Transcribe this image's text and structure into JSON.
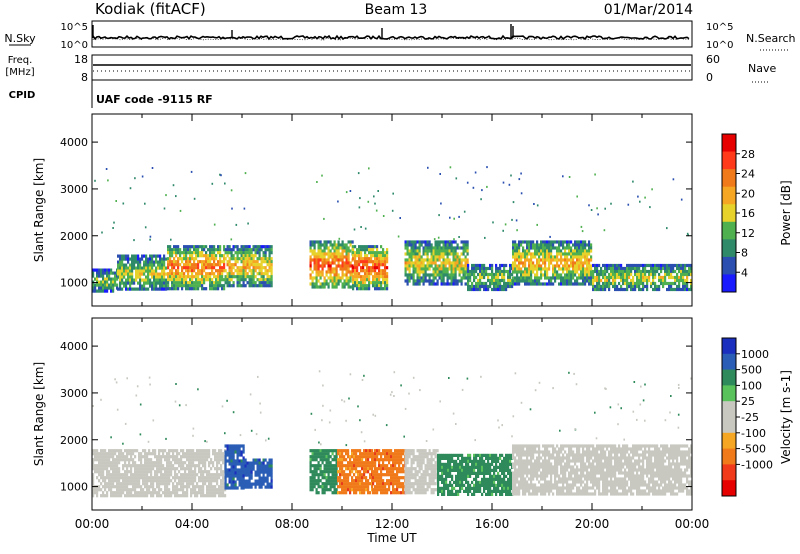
{
  "header": {
    "station": "Kodiak (fitACF)",
    "beam": "Beam 13",
    "date": "01/Mar/2014"
  },
  "top_panel": {
    "left_label": "N.Sky",
    "left_ticks": [
      "10^5",
      "10^0"
    ],
    "right_ticks": [
      "10^5",
      "10^0"
    ],
    "right_label": "N.Search"
  },
  "freq_panel": {
    "left_label_1": "Freq.",
    "left_label_2": "[MHz]",
    "left_ticks": [
      "18",
      "8"
    ],
    "right_ticks": [
      "60",
      "0"
    ],
    "right_label": "Nave"
  },
  "cpid_panel": {
    "label": "CPID",
    "text": "UAF code -9115 RF"
  },
  "colors": {
    "power_scale": [
      "#1a1aff",
      "#2a4fb0",
      "#2f8a6a",
      "#4fb04f",
      "#e6d22a",
      "#f5a623",
      "#f07a1a",
      "#ff3a1a",
      "#e60000"
    ],
    "velocity_scale": [
      "#1b2fbf",
      "#2a5db5",
      "#2e8a5a",
      "#5ac25a",
      "#c8c8c0",
      "#c8c8c0",
      "#f5a623",
      "#f07a1a",
      "#f03a1a",
      "#e60000"
    ],
    "ground_scatter": "#c8c8c0"
  },
  "chart_data": [
    {
      "type": "heatmap",
      "title": "",
      "xlabel": "",
      "ylabel": "Slant Range [km]",
      "xlim": [
        "00:00",
        "24:00"
      ],
      "ylim": [
        500,
        4600
      ],
      "y_ticks": [
        "1000",
        "2000",
        "3000",
        "4000"
      ],
      "colorbar": {
        "label": "Power [dB]",
        "ticks": [
          "28",
          "24",
          "20",
          "16",
          "12",
          "8",
          "4"
        ],
        "range": [
          0,
          32
        ]
      },
      "bands": [
        {
          "start_hr": 0.0,
          "end_hr": 1.0,
          "min_km": 820,
          "max_km": 1300,
          "value": 14
        },
        {
          "start_hr": 1.0,
          "end_hr": 3.0,
          "min_km": 850,
          "max_km": 1600,
          "value": 16
        },
        {
          "start_hr": 3.0,
          "end_hr": 5.3,
          "min_km": 900,
          "max_km": 1800,
          "value": 24
        },
        {
          "start_hr": 5.3,
          "end_hr": 7.2,
          "min_km": 950,
          "max_km": 1800,
          "value": 20
        },
        {
          "start_hr": 8.7,
          "end_hr": 10.4,
          "min_km": 900,
          "max_km": 1900,
          "value": 26
        },
        {
          "start_hr": 10.4,
          "end_hr": 11.8,
          "min_km": 900,
          "max_km": 1800,
          "value": 27
        },
        {
          "start_hr": 12.5,
          "end_hr": 15.0,
          "min_km": 1000,
          "max_km": 1900,
          "value": 18
        },
        {
          "start_hr": 15.0,
          "end_hr": 16.8,
          "min_km": 850,
          "max_km": 1400,
          "value": 14
        },
        {
          "start_hr": 16.8,
          "end_hr": 20.0,
          "min_km": 1000,
          "max_km": 1900,
          "value": 20
        },
        {
          "start_hr": 20.0,
          "end_hr": 24.0,
          "min_km": 850,
          "max_km": 1400,
          "value": 16
        }
      ]
    },
    {
      "type": "heatmap",
      "title": "",
      "xlabel": "Time UT",
      "ylabel": "Slant Range [km]",
      "xlim": [
        "00:00",
        "24:00"
      ],
      "ylim": [
        500,
        4600
      ],
      "x_ticks": [
        "00:00",
        "04:00",
        "08:00",
        "12:00",
        "16:00",
        "20:00",
        "00:00"
      ],
      "y_ticks": [
        "1000",
        "2000",
        "3000",
        "4000"
      ],
      "colorbar": {
        "label": "Velocity [m s-1]",
        "ticks": [
          "1000",
          "500",
          "100",
          "25",
          "-25",
          "-100",
          "-500",
          "-1000"
        ]
      },
      "bands": [
        {
          "start_hr": 0.0,
          "end_hr": 5.3,
          "min_km": 820,
          "max_km": 1800,
          "value": "ground"
        },
        {
          "start_hr": 5.3,
          "end_hr": 6.1,
          "min_km": 1000,
          "max_km": 1900,
          "value": 700
        },
        {
          "start_hr": 6.1,
          "end_hr": 7.2,
          "min_km": 1000,
          "max_km": 1600,
          "value": 500
        },
        {
          "start_hr": 8.7,
          "end_hr": 9.8,
          "min_km": 900,
          "max_km": 1800,
          "value": 150
        },
        {
          "start_hr": 9.8,
          "end_hr": 11.2,
          "min_km": 900,
          "max_km": 1800,
          "value": -300
        },
        {
          "start_hr": 11.2,
          "end_hr": 12.5,
          "min_km": 900,
          "max_km": 1800,
          "value": -500
        },
        {
          "start_hr": 12.5,
          "end_hr": 13.8,
          "min_km": 900,
          "max_km": 1800,
          "value": 10
        },
        {
          "start_hr": 13.8,
          "end_hr": 16.8,
          "min_km": 850,
          "max_km": 1700,
          "value": 100
        },
        {
          "start_hr": 16.8,
          "end_hr": 24.0,
          "min_km": 820,
          "max_km": 1900,
          "value": "ground"
        }
      ]
    }
  ]
}
